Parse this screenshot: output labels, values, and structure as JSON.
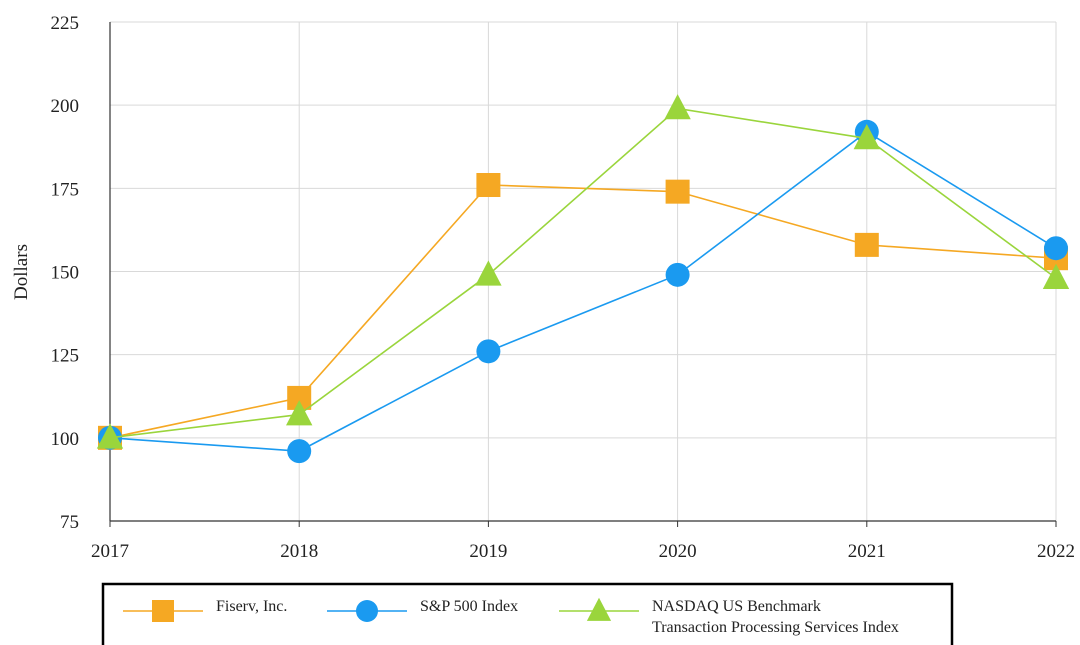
{
  "chart_data": {
    "type": "line",
    "title": "",
    "xlabel": "",
    "ylabel": "Dollars",
    "ylim": [
      75,
      225
    ],
    "yticks": [
      75,
      100,
      125,
      150,
      175,
      200,
      225
    ],
    "categories": [
      "2017",
      "2018",
      "2019",
      "2020",
      "2021",
      "2022"
    ],
    "grid": true,
    "legend_position": "bottom",
    "series": [
      {
        "name": "Fiserv, Inc.",
        "marker": "square",
        "color": "#f5a823",
        "values": [
          100,
          112,
          176,
          174,
          158,
          154
        ]
      },
      {
        "name": "S&P 500 Index",
        "marker": "circle",
        "color": "#1a9af0",
        "values": [
          100,
          96,
          126,
          149,
          192,
          157
        ]
      },
      {
        "name": "NASDAQ US Benchmark Transaction Processing Services Index",
        "name_lines": [
          "NASDAQ US Benchmark",
          "Transaction Processing Services Index"
        ],
        "marker": "triangle",
        "color": "#9ad53c",
        "values": [
          100,
          107,
          149,
          199,
          190,
          148
        ]
      }
    ]
  }
}
